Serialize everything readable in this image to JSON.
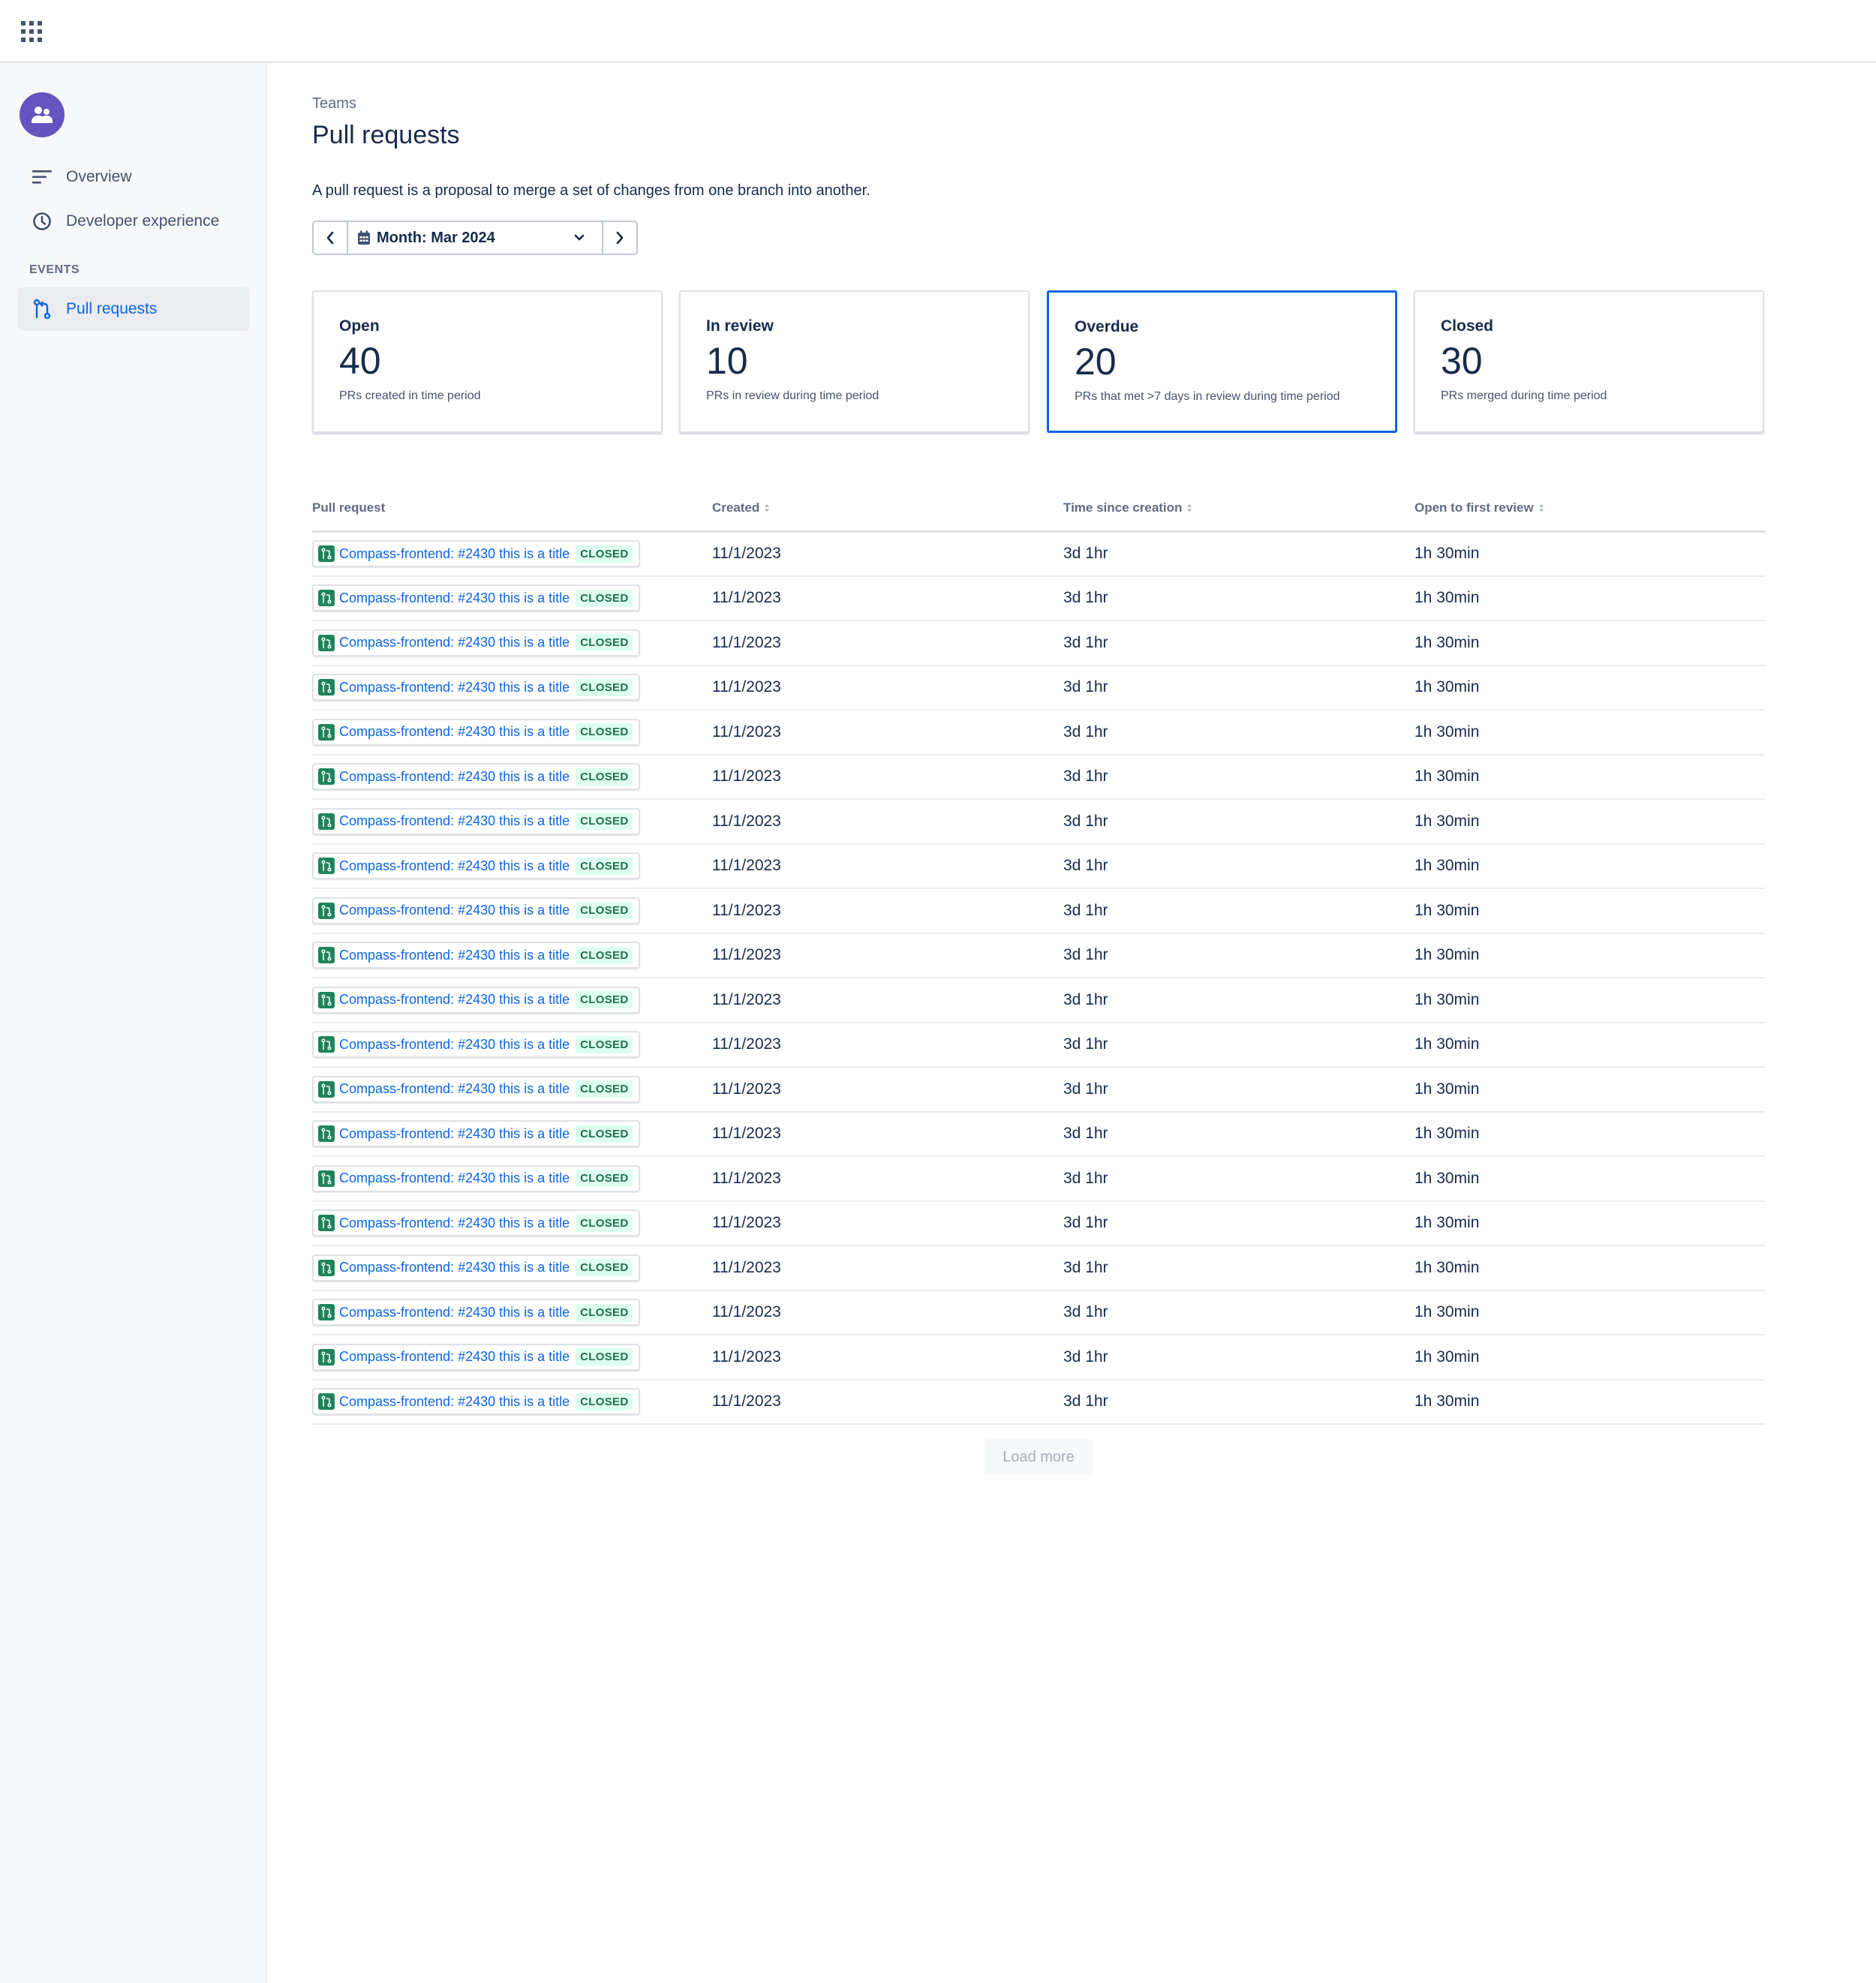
{
  "topbar": {
    "app_switcher_icon": "grid-apps-icon"
  },
  "sidebar": {
    "team_avatar_icon": "team-people-icon",
    "avatar_color": "#6554c0",
    "items": [
      {
        "label": "Overview",
        "icon": "overview-lines-icon"
      },
      {
        "label": "Developer experience",
        "icon": "clock-icon"
      }
    ],
    "section_label": "EVENTS",
    "events_items": [
      {
        "label": "Pull requests",
        "icon": "pull-request-icon",
        "active": true
      }
    ]
  },
  "main": {
    "breadcrumb": "Teams",
    "title": "Pull requests",
    "description": "A pull request is a proposal to merge a set of changes from one branch into another.",
    "month_picker": {
      "label": "Month: Mar 2024",
      "prev_icon": "chevron-left-icon",
      "next_icon": "chevron-right-icon",
      "calendar_icon": "calendar-icon",
      "dropdown_icon": "chevron-down-icon"
    },
    "cards": [
      {
        "title": "Open",
        "value": "40",
        "sub": "PRs created in time period",
        "selected": false
      },
      {
        "title": "In review",
        "value": "10",
        "sub": "PRs in review during time period",
        "selected": false
      },
      {
        "title": "Overdue",
        "value": "20",
        "sub": "PRs that met >7 days in review during time period",
        "selected": true
      },
      {
        "title": "Closed",
        "value": "30",
        "sub": "PRs merged during time period",
        "selected": false
      }
    ],
    "table": {
      "headers": [
        "Pull request",
        "Created",
        "Time since creation",
        "Open to first review"
      ],
      "rows": [
        {
          "pr": "Compass-frontend: #2430 this is a title",
          "status": "CLOSED",
          "created": "11/1/2023",
          "since": "3d 1hr",
          "first_review": "1h 30min"
        },
        {
          "pr": "Compass-frontend: #2430 this is a title",
          "status": "CLOSED",
          "created": "11/1/2023",
          "since": "3d 1hr",
          "first_review": "1h 30min"
        },
        {
          "pr": "Compass-frontend: #2430 this is a title",
          "status": "CLOSED",
          "created": "11/1/2023",
          "since": "3d 1hr",
          "first_review": "1h 30min"
        },
        {
          "pr": "Compass-frontend: #2430 this is a title",
          "status": "CLOSED",
          "created": "11/1/2023",
          "since": "3d 1hr",
          "first_review": "1h 30min"
        },
        {
          "pr": "Compass-frontend: #2430 this is a title",
          "status": "CLOSED",
          "created": "11/1/2023",
          "since": "3d 1hr",
          "first_review": "1h 30min"
        },
        {
          "pr": "Compass-frontend: #2430 this is a title",
          "status": "CLOSED",
          "created": "11/1/2023",
          "since": "3d 1hr",
          "first_review": "1h 30min"
        },
        {
          "pr": "Compass-frontend: #2430 this is a title",
          "status": "CLOSED",
          "created": "11/1/2023",
          "since": "3d 1hr",
          "first_review": "1h 30min"
        },
        {
          "pr": "Compass-frontend: #2430 this is a title",
          "status": "CLOSED",
          "created": "11/1/2023",
          "since": "3d 1hr",
          "first_review": "1h 30min"
        },
        {
          "pr": "Compass-frontend: #2430 this is a title",
          "status": "CLOSED",
          "created": "11/1/2023",
          "since": "3d 1hr",
          "first_review": "1h 30min"
        },
        {
          "pr": "Compass-frontend: #2430 this is a title",
          "status": "CLOSED",
          "created": "11/1/2023",
          "since": "3d 1hr",
          "first_review": "1h 30min"
        },
        {
          "pr": "Compass-frontend: #2430 this is a title",
          "status": "CLOSED",
          "created": "11/1/2023",
          "since": "3d 1hr",
          "first_review": "1h 30min"
        },
        {
          "pr": "Compass-frontend: #2430 this is a title",
          "status": "CLOSED",
          "created": "11/1/2023",
          "since": "3d 1hr",
          "first_review": "1h 30min"
        },
        {
          "pr": "Compass-frontend: #2430 this is a title",
          "status": "CLOSED",
          "created": "11/1/2023",
          "since": "3d 1hr",
          "first_review": "1h 30min"
        },
        {
          "pr": "Compass-frontend: #2430 this is a title",
          "status": "CLOSED",
          "created": "11/1/2023",
          "since": "3d 1hr",
          "first_review": "1h 30min"
        },
        {
          "pr": "Compass-frontend: #2430 this is a title",
          "status": "CLOSED",
          "created": "11/1/2023",
          "since": "3d 1hr",
          "first_review": "1h 30min"
        },
        {
          "pr": "Compass-frontend: #2430 this is a title",
          "status": "CLOSED",
          "created": "11/1/2023",
          "since": "3d 1hr",
          "first_review": "1h 30min"
        },
        {
          "pr": "Compass-frontend: #2430 this is a title",
          "status": "CLOSED",
          "created": "11/1/2023",
          "since": "3d 1hr",
          "first_review": "1h 30min"
        },
        {
          "pr": "Compass-frontend: #2430 this is a title",
          "status": "CLOSED",
          "created": "11/1/2023",
          "since": "3d 1hr",
          "first_review": "1h 30min"
        },
        {
          "pr": "Compass-frontend: #2430 this is a title",
          "status": "CLOSED",
          "created": "11/1/2023",
          "since": "3d 1hr",
          "first_review": "1h 30min"
        },
        {
          "pr": "Compass-frontend: #2430 this is a title",
          "status": "CLOSED",
          "created": "11/1/2023",
          "since": "3d 1hr",
          "first_review": "1h 30min"
        }
      ]
    },
    "load_more_label": "Load more"
  },
  "colors": {
    "accent_blue": "#0c66e4",
    "status_green_bg": "#dcfff1",
    "status_green_text": "#216e4e",
    "pr_icon_green": "#1f845a"
  }
}
